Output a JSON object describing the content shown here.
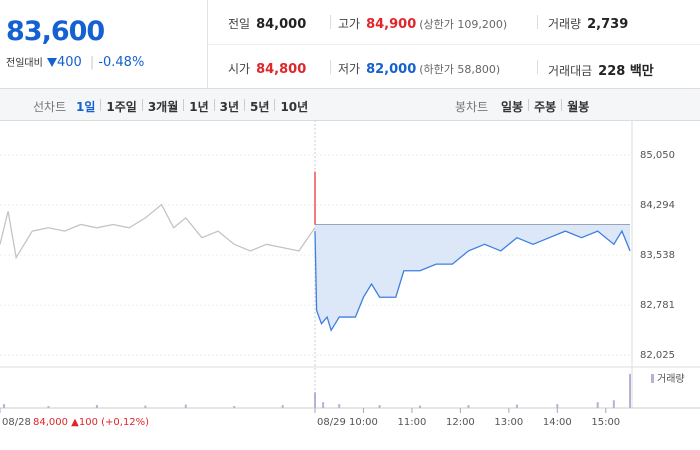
{
  "quote": {
    "price": "83,600",
    "change_label": "전일대비",
    "change": "400",
    "change_pct": "-0.48%"
  },
  "stats": [
    {
      "label": "전일",
      "value": "84,000",
      "color": "#222222"
    },
    {
      "label": "고가",
      "value": "84,900",
      "note": "(상한가 109,200)",
      "color": "#e0262b"
    },
    {
      "label": "거래량",
      "value": "2,739",
      "color": "#222222"
    },
    {
      "label": "시가",
      "value": "84,800",
      "color": "#e0262b"
    },
    {
      "label": "저가",
      "value": "82,000",
      "note": "(하한가 58,800)",
      "color": "#1461d1"
    },
    {
      "label": "거래대금",
      "value": "228 백만",
      "color": "#222222"
    }
  ],
  "tabs": {
    "line_label": "선차트",
    "line": [
      "1일",
      "1주일",
      "3개월",
      "1년",
      "3년",
      "5년",
      "10년"
    ],
    "line_active": 0,
    "candle_label": "봉차트",
    "candle": [
      "일봉",
      "주봉",
      "월봉"
    ]
  },
  "chart_data": {
    "type": "line",
    "ylim": [
      81875,
      85580
    ],
    "yticks": [
      {
        "value": 85050,
        "label": "85,050"
      },
      {
        "value": 84294,
        "label": "84,294"
      },
      {
        "value": 83538,
        "label": "83,538"
      },
      {
        "value": 82781,
        "label": "82,781"
      },
      {
        "value": 82025,
        "label": "82,025"
      }
    ],
    "xlim": [
      0,
      780
    ],
    "xticks": [
      {
        "value": 0,
        "label": "08/28"
      },
      {
        "value": 390,
        "label": "08/29"
      },
      {
        "value": 450,
        "label": "10:00"
      },
      {
        "value": 510,
        "label": "11:00"
      },
      {
        "value": 570,
        "label": "12:00"
      },
      {
        "value": 630,
        "label": "13:00"
      },
      {
        "value": 690,
        "label": "14:00"
      },
      {
        "value": 750,
        "label": "15:00"
      }
    ],
    "baseline": 84000,
    "prev_note": "84,000 ▲100 (+0,12%)",
    "series": [
      {
        "color": "#c4c4c4",
        "x": [
          0,
          10,
          20,
          30,
          40,
          60,
          80,
          100,
          120,
          140,
          160,
          180,
          200,
          215,
          230,
          250,
          270,
          290,
          310,
          330,
          350,
          370,
          390
        ],
        "values": [
          83700,
          84200,
          83500,
          83700,
          83900,
          83950,
          83900,
          84000,
          83950,
          84000,
          83950,
          84100,
          84300,
          83950,
          84100,
          83800,
          83900,
          83700,
          83600,
          83700,
          83650,
          83600,
          83950
        ]
      },
      {
        "color": "#e8383d",
        "x": [
          390,
          390
        ],
        "values": [
          84800,
          84000
        ]
      },
      {
        "color": "#3f7fe0",
        "fill": "#dce8f8",
        "x": [
          390,
          392,
          398,
          405,
          410,
          420,
          440,
          450,
          460,
          470,
          490,
          500,
          520,
          540,
          560,
          580,
          600,
          620,
          640,
          660,
          680,
          700,
          720,
          740,
          760,
          770,
          780
        ],
        "values": [
          83900,
          82700,
          82500,
          82600,
          82400,
          82600,
          82600,
          82900,
          83100,
          82900,
          82900,
          83300,
          83300,
          83400,
          83400,
          83600,
          83700,
          83600,
          83800,
          83700,
          83800,
          83900,
          83800,
          83900,
          83700,
          83900,
          83600
        ]
      }
    ],
    "volume": {
      "label": "거래량",
      "color": "#b9b0d6",
      "vlim": [
        0,
        400
      ],
      "x": [
        5,
        60,
        120,
        180,
        230,
        290,
        350,
        390,
        400,
        420,
        470,
        520,
        580,
        640,
        690,
        740,
        760,
        780
      ],
      "values": [
        40,
        20,
        30,
        25,
        35,
        20,
        30,
        160,
        60,
        40,
        30,
        25,
        30,
        35,
        40,
        60,
        80,
        350
      ]
    }
  }
}
